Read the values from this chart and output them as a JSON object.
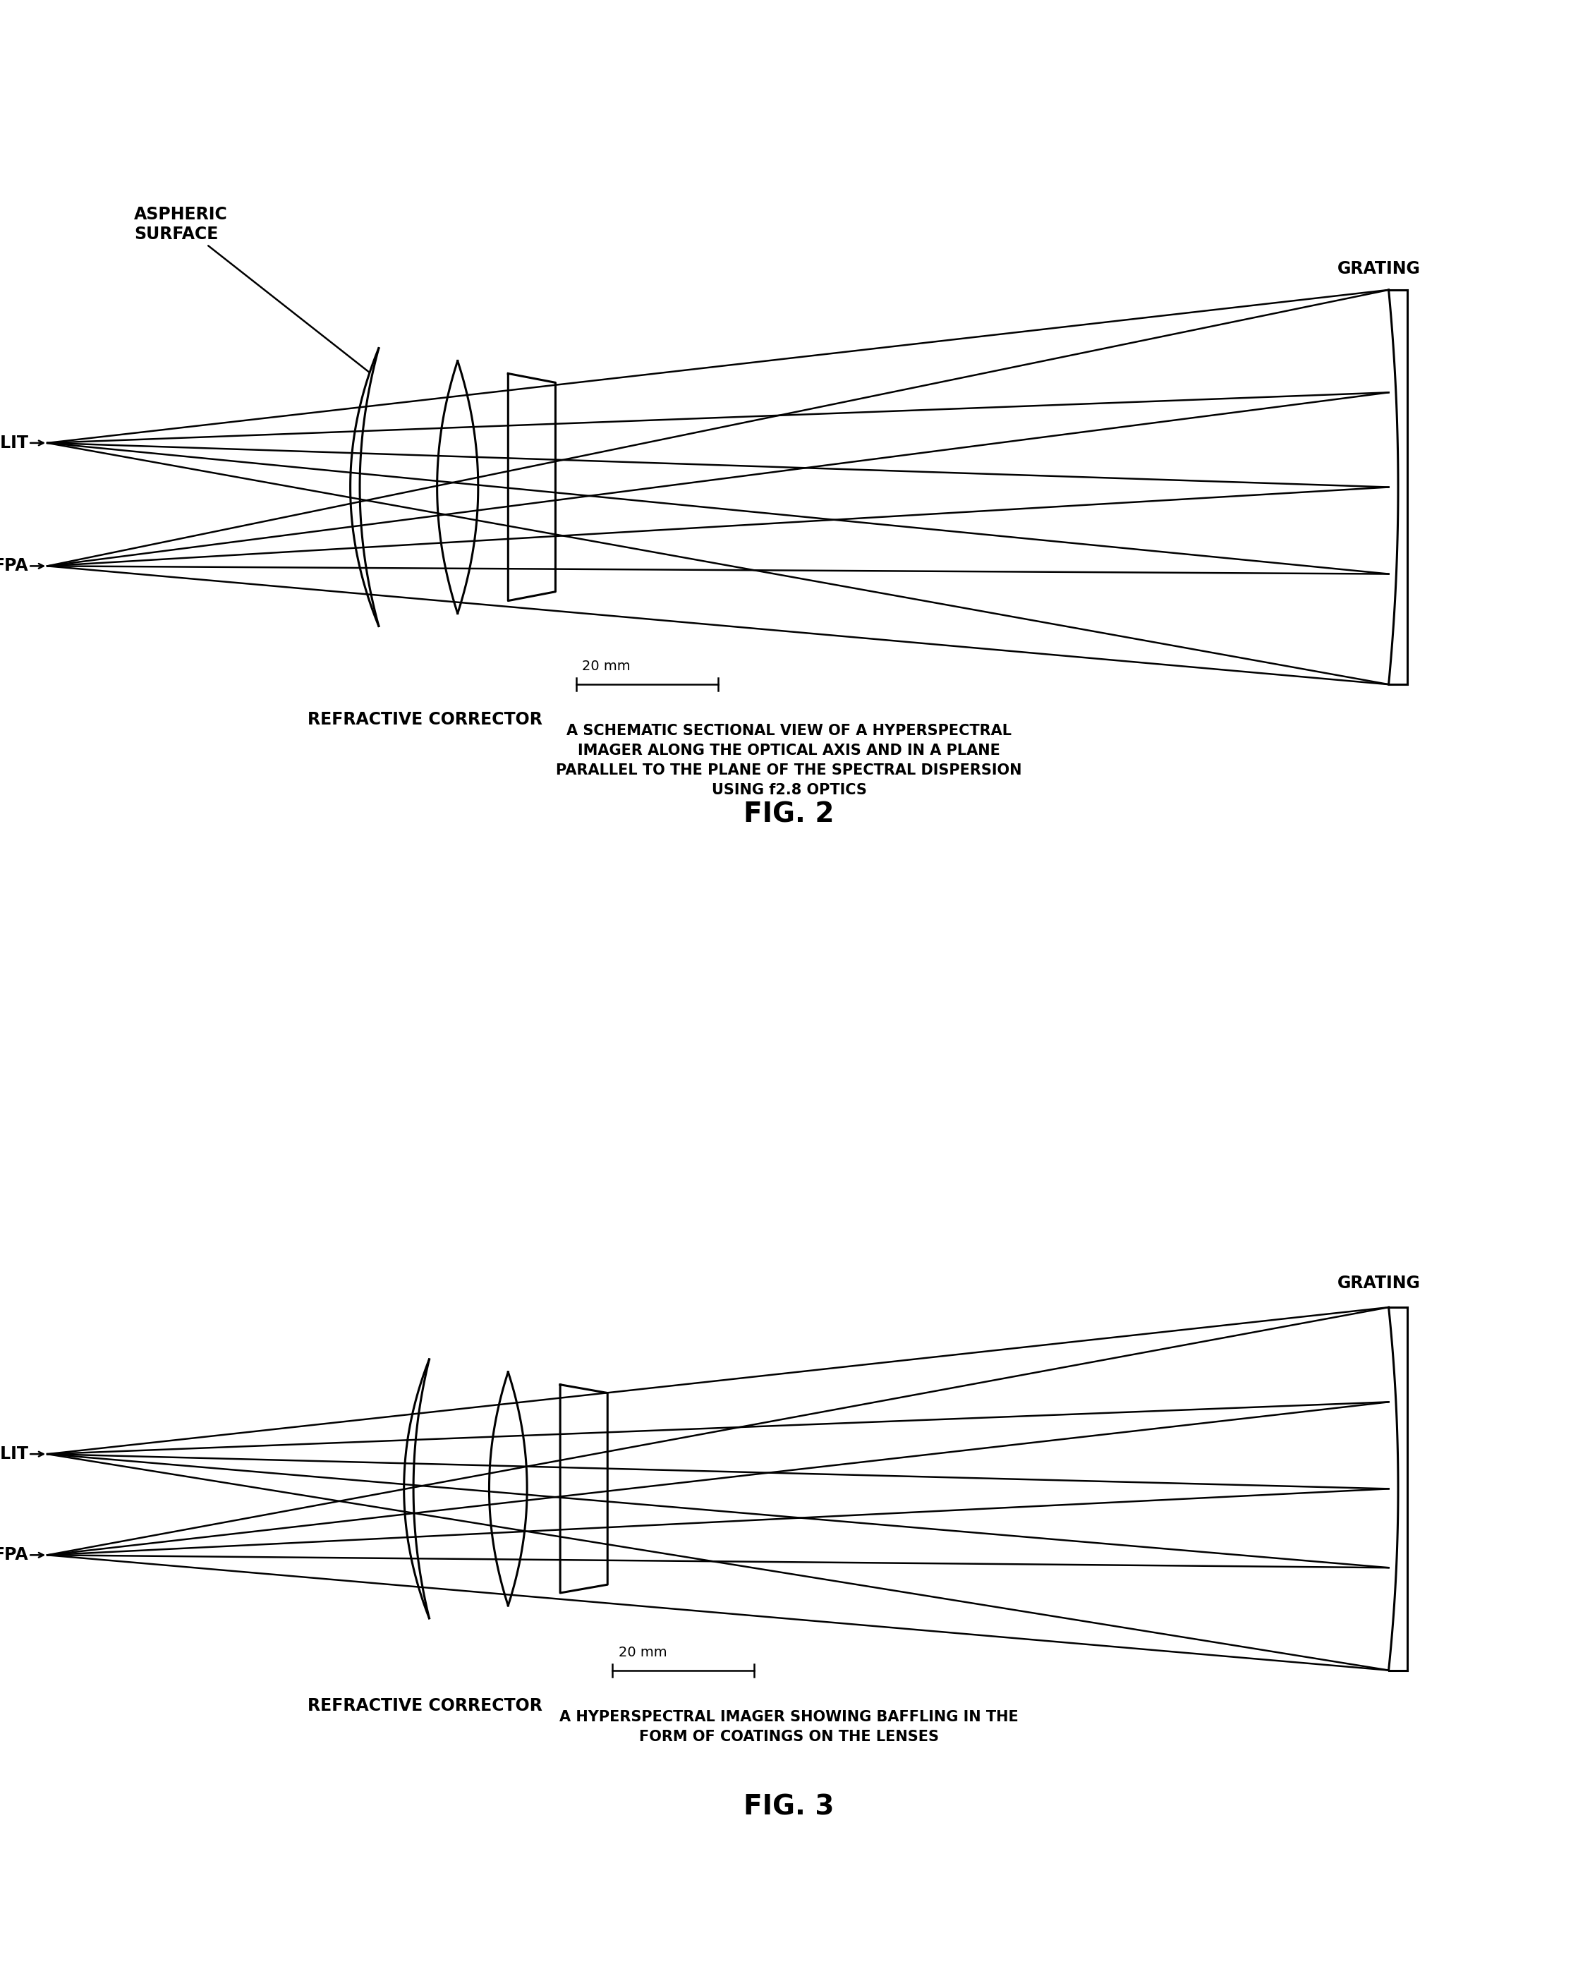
{
  "bg_color": "#ffffff",
  "line_color": "#000000",
  "lw_ray": 1.8,
  "lw_lens": 2.2,
  "lw_grating": 2.2,
  "fig2": {
    "title": "A SCHEMATIC SECTIONAL VIEW OF A HYPERSPECTRAL\nIMAGER ALONG THE OPTICAL AXIS AND IN A PLANE\nPARALLEL TO THE PLANE OF THE SPECTRAL DISPERSION\nUSING f2.8 OPTICS",
    "fig_label": "FIG. 2",
    "label_aspheric": "ASPHERIC\nSURFACE",
    "label_slit": "SLIT",
    "label_fpa": "FPA",
    "label_grating": "GRATING",
    "label_corrector": "REFRACTIVE CORRECTOR",
    "label_scale": "20 mm"
  },
  "fig3": {
    "title": "A HYPERSPECTRAL IMAGER SHOWING BAFFLING IN THE\nFORM OF COATINGS ON THE LENSES",
    "fig_label": "FIG. 3",
    "label_slit": "SLIT",
    "label_fpa": "FPA",
    "label_grating": "GRATING",
    "label_corrector": "REFRACTIVE CORRECTOR",
    "label_scale": "20 mm"
  }
}
